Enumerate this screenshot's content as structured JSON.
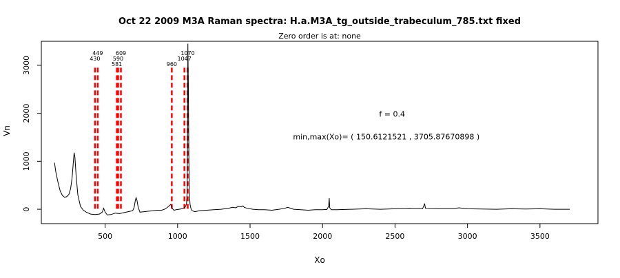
{
  "chart_data": {
    "type": "line",
    "title": "Oct 22 2009 M3A Raman spectra: H.a.M3A_tg_outside_trabeculum_785.txt fixed",
    "subtitle": "Zero order is at:  none",
    "xlabel": "Xo",
    "ylabel": "Vn",
    "xlim": [
      60,
      3900
    ],
    "ylim": [
      -300,
      3500
    ],
    "x_ticks": [
      500,
      1000,
      1500,
      2000,
      2500,
      3000,
      3500
    ],
    "y_ticks": [
      0,
      1000,
      2000,
      3000
    ],
    "grid": false,
    "colors": {
      "series": "#000000",
      "peak_markers": "#ff0000",
      "frame": "#000000"
    },
    "annotations": [
      {
        "text": "f =  0.4",
        "x": 2480,
        "y": 1930
      },
      {
        "text": "min,max(Xo)= ( 150.6121521 , 3705.87670898 )",
        "x": 2440,
        "y": 1460
      }
    ],
    "peak_markers": [
      {
        "label": "430",
        "x": 430
      },
      {
        "label": "449",
        "x": 449
      },
      {
        "label": "581",
        "x": 581
      },
      {
        "label": "590",
        "x": 590
      },
      {
        "label": "609",
        "x": 609
      },
      {
        "label": "960",
        "x": 960
      },
      {
        "label": "1047",
        "x": 1047
      },
      {
        "label": "1070",
        "x": 1070
      }
    ],
    "series": [
      {
        "x": [
          151,
          160,
          175,
          190,
          205,
          220,
          235,
          250,
          262,
          272,
          280,
          286,
          292,
          300,
          312,
          330,
          350,
          370,
          400,
          430,
          460,
          480,
          490,
          500,
          515,
          540,
          570,
          600,
          630,
          660,
          690,
          700,
          708,
          714,
          720,
          728,
          740,
          770,
          800,
          830,
          860,
          890,
          910,
          925,
          938,
          946,
          952,
          958,
          965,
          975,
          990,
          1010,
          1030,
          1045,
          1055,
          1062,
          1066,
          1069,
          1071,
          1074,
          1078,
          1082,
          1086,
          1092,
          1100,
          1120,
          1150,
          1200,
          1250,
          1300,
          1350,
          1380,
          1400,
          1420,
          1440,
          1450,
          1460,
          1480,
          1520,
          1560,
          1600,
          1650,
          1700,
          1740,
          1760,
          1800,
          1850,
          1900,
          1950,
          2000,
          2030,
          2042,
          2046,
          2050,
          2060,
          2100,
          2200,
          2300,
          2400,
          2500,
          2600,
          2690,
          2700,
          2704,
          2710,
          2800,
          2900,
          2940,
          3000,
          3100,
          3200,
          3300,
          3400,
          3500,
          3600,
          3705
        ],
        "values": [
          970,
          780,
          560,
          380,
          290,
          250,
          260,
          310,
          430,
          650,
          950,
          1180,
          1080,
          700,
          300,
          60,
          -20,
          -60,
          -100,
          -110,
          -100,
          -60,
          20,
          -60,
          -120,
          -110,
          -80,
          -90,
          -70,
          -50,
          -30,
          40,
          180,
          240,
          180,
          40,
          -60,
          -50,
          -40,
          -30,
          -20,
          -20,
          0,
          30,
          60,
          80,
          100,
          60,
          10,
          -20,
          -10,
          0,
          10,
          30,
          60,
          120,
          400,
          1500,
          3450,
          2600,
          1000,
          300,
          100,
          20,
          -30,
          -50,
          -30,
          -20,
          -10,
          0,
          20,
          40,
          30,
          60,
          50,
          70,
          40,
          20,
          0,
          -10,
          -10,
          -20,
          0,
          20,
          40,
          0,
          -10,
          -20,
          -10,
          -10,
          -5,
          60,
          230,
          30,
          -10,
          -10,
          0,
          10,
          0,
          10,
          20,
          10,
          80,
          120,
          20,
          10,
          10,
          30,
          10,
          5,
          0,
          10,
          5,
          10,
          0,
          0
        ]
      }
    ]
  }
}
